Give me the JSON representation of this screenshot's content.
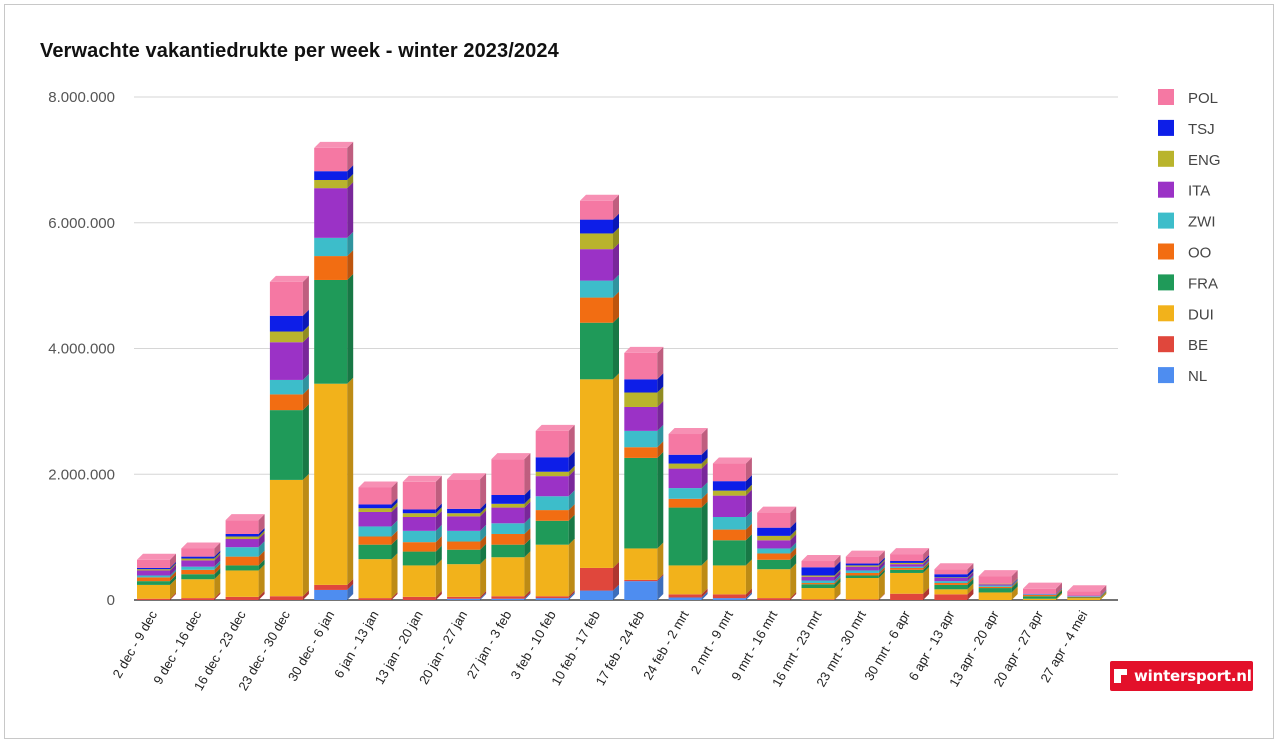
{
  "chart_data": {
    "type": "bar",
    "stacked": true,
    "title": "Verwachte vakantiedrukte per week - winter 2023/2024",
    "ylim": [
      0,
      8000000
    ],
    "yticks": [
      0,
      2000000,
      4000000,
      6000000,
      8000000
    ],
    "ytick_labels": [
      "0",
      "2.000.000",
      "4.000.000",
      "6.000.000",
      "8.000.000"
    ],
    "grid": true,
    "legend_position": "right",
    "categories": [
      "2 dec - 9 dec",
      "9 dec - 16 dec",
      "16 dec - 23 dec",
      "23 dec - 30 dec",
      "30 dec - 6 jan",
      "6 jan - 13 jan",
      "13 jan - 20 jan",
      "20 jan - 27 jan",
      "27 jan - 3 feb",
      "3 feb - 10 feb",
      "10 feb - 17 feb",
      "17 feb - 24 feb",
      "24 feb - 2 mrt",
      "2 mrt - 9 mrt",
      "9 mrt - 16 mrt",
      "16 mrt - 23 mrt",
      "23 mrt - 30 mrt",
      "30 mrt - 6 apr",
      "6 apr - 13 apr",
      "13 apr - 20 apr",
      "20 apr - 27 apr",
      "27 apr - 4 mei"
    ],
    "series": [
      {
        "name": "NL",
        "color": "#4e8df0",
        "values": [
          0,
          0,
          0,
          0,
          160000,
          0,
          0,
          20000,
          20000,
          30000,
          150000,
          300000,
          40000,
          30000,
          0,
          0,
          0,
          0,
          0,
          0,
          0,
          0
        ]
      },
      {
        "name": "BE",
        "color": "#e0473c",
        "values": [
          20000,
          30000,
          50000,
          60000,
          80000,
          30000,
          50000,
          30000,
          40000,
          30000,
          360000,
          20000,
          50000,
          60000,
          30000,
          10000,
          10000,
          100000,
          90000,
          0,
          0,
          0
        ]
      },
      {
        "name": "DUI",
        "color": "#f2b21b",
        "values": [
          220000,
          300000,
          420000,
          1850000,
          3200000,
          620000,
          500000,
          520000,
          620000,
          820000,
          3000000,
          500000,
          460000,
          460000,
          460000,
          180000,
          340000,
          330000,
          80000,
          120000,
          20000,
          30000
        ]
      },
      {
        "name": "FRA",
        "color": "#1f9a59",
        "values": [
          60000,
          80000,
          80000,
          1110000,
          1650000,
          230000,
          220000,
          230000,
          200000,
          380000,
          900000,
          1440000,
          920000,
          400000,
          150000,
          60000,
          40000,
          50000,
          70000,
          70000,
          40000,
          10000
        ]
      },
      {
        "name": "OO",
        "color": "#f26d12",
        "values": [
          60000,
          70000,
          140000,
          250000,
          380000,
          130000,
          150000,
          130000,
          170000,
          170000,
          400000,
          170000,
          140000,
          170000,
          100000,
          20000,
          40000,
          30000,
          30000,
          20000,
          20000,
          10000
        ]
      },
      {
        "name": "ZWI",
        "color": "#3dbdca",
        "values": [
          30000,
          50000,
          150000,
          230000,
          290000,
          160000,
          180000,
          170000,
          170000,
          220000,
          270000,
          260000,
          170000,
          200000,
          80000,
          40000,
          40000,
          20000,
          30000,
          20000,
          10000,
          10000
        ]
      },
      {
        "name": "ITA",
        "color": "#9b32c6",
        "values": [
          80000,
          100000,
          130000,
          600000,
          790000,
          230000,
          220000,
          230000,
          250000,
          320000,
          500000,
          380000,
          310000,
          340000,
          130000,
          60000,
          60000,
          40000,
          50000,
          20000,
          10000,
          10000
        ]
      },
      {
        "name": "ENG",
        "color": "#b9b42c",
        "values": [
          20000,
          30000,
          40000,
          170000,
          130000,
          60000,
          60000,
          50000,
          60000,
          70000,
          250000,
          230000,
          80000,
          80000,
          70000,
          20000,
          20000,
          20000,
          10000,
          10000,
          0,
          0
        ]
      },
      {
        "name": "TSJ",
        "color": "#0d1ee8",
        "values": [
          20000,
          30000,
          40000,
          250000,
          140000,
          60000,
          60000,
          70000,
          140000,
          230000,
          220000,
          210000,
          140000,
          150000,
          130000,
          130000,
          30000,
          30000,
          50000,
          0,
          0,
          0
        ]
      },
      {
        "name": "POL",
        "color": "#f578a3",
        "values": [
          130000,
          130000,
          220000,
          540000,
          370000,
          270000,
          440000,
          470000,
          570000,
          420000,
          300000,
          420000,
          330000,
          280000,
          240000,
          100000,
          110000,
          110000,
          80000,
          120000,
          80000,
          70000
        ]
      }
    ]
  },
  "watermark": "wintersport.nl"
}
